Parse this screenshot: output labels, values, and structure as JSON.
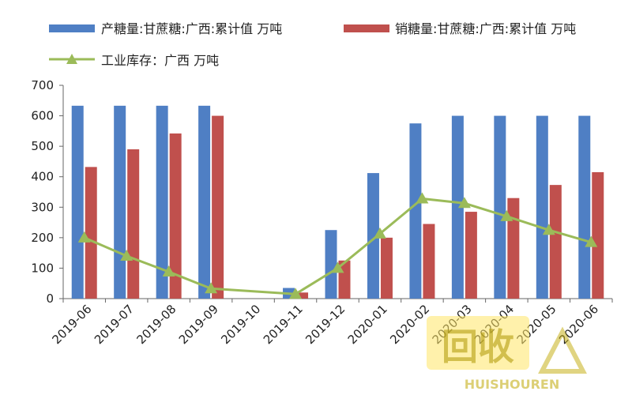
{
  "chart_data": {
    "type": "bar",
    "categories": [
      "2019-06",
      "2019-07",
      "2019-08",
      "2019-09",
      "2019-10",
      "2019-11",
      "2019-12",
      "2020-01",
      "2020-02",
      "2020-03",
      "2020-04",
      "2020-05",
      "2020-06"
    ],
    "series": [
      {
        "name": "产糖量:甘蔗糖:广西:累计值 万吨",
        "kind": "bar",
        "color": "#4f7fc4",
        "values": [
          633,
          633,
          633,
          633,
          null,
          35,
          225,
          412,
          575,
          600,
          600,
          600,
          600
        ]
      },
      {
        "name": "销糖量:甘蔗糖:广西:累计值 万吨",
        "kind": "bar",
        "color": "#c0504d",
        "values": [
          432,
          490,
          542,
          600,
          null,
          20,
          125,
          200,
          245,
          285,
          330,
          373,
          415
        ]
      },
      {
        "name": "工业库存：广西 万吨",
        "kind": "line",
        "color": "#9bbb59",
        "values": [
          200,
          140,
          88,
          33,
          null,
          15,
          100,
          213,
          328,
          313,
          270,
          225,
          185
        ]
      }
    ],
    "ylim": [
      0,
      700
    ],
    "yticks": [
      0,
      100,
      200,
      300,
      400,
      500,
      600,
      700
    ],
    "title": "",
    "xlabel": "",
    "ylabel": "",
    "grid": false,
    "legend_position": "top"
  },
  "watermark": {
    "main": "回收",
    "sub": "HUISHOUREN"
  }
}
